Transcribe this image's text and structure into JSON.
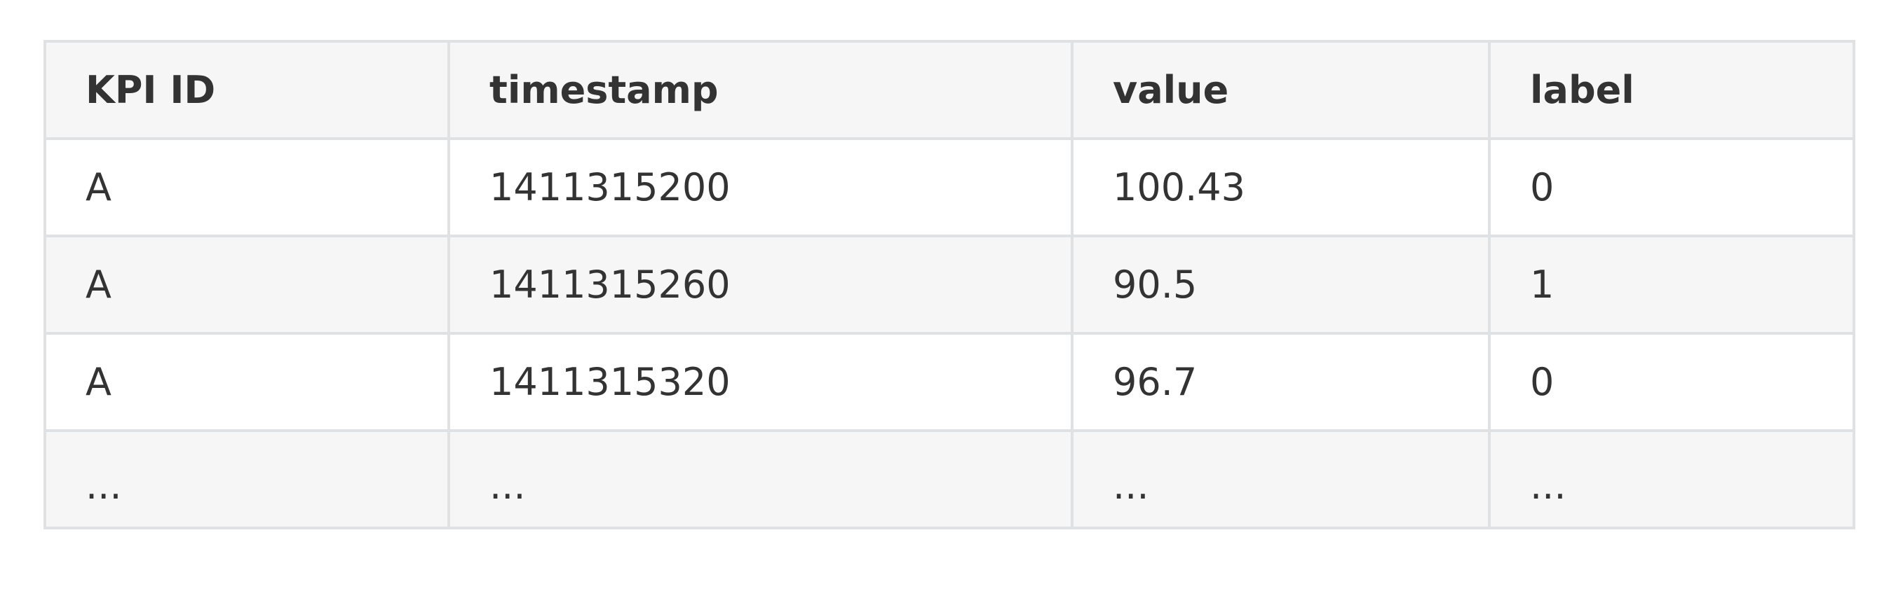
{
  "table": {
    "headers": [
      "KPI ID",
      "timestamp",
      "value",
      "label"
    ],
    "rows": [
      [
        "A",
        "1411315200",
        "100.43",
        "0"
      ],
      [
        "A",
        "1411315260",
        "90.5",
        "1"
      ],
      [
        "A",
        "1411315320",
        "96.7",
        "0"
      ],
      [
        "...",
        "...",
        "...",
        "..."
      ]
    ]
  }
}
